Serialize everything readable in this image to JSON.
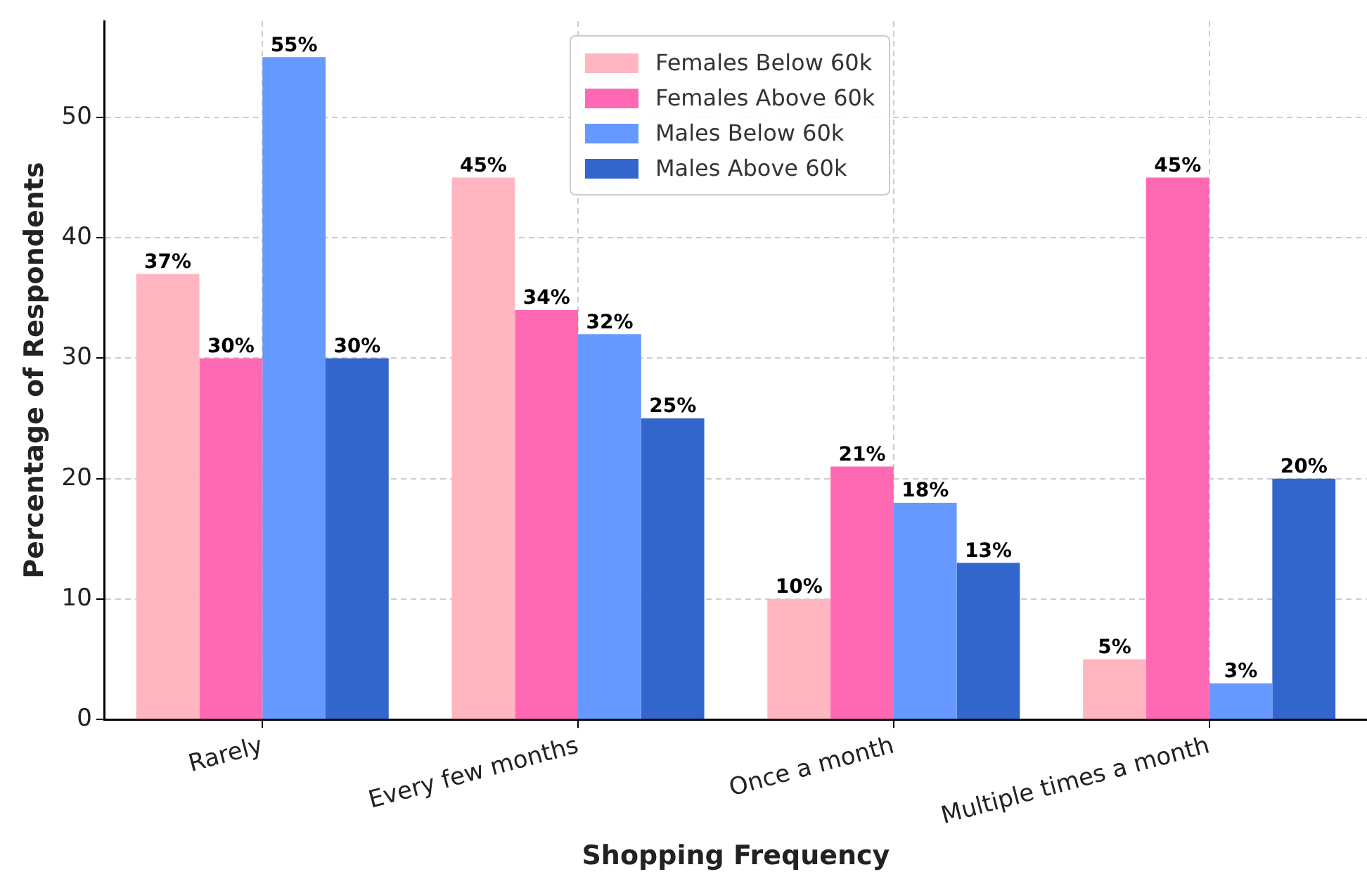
{
  "chart_data": {
    "type": "bar",
    "xlabel": "Shopping Frequency",
    "ylabel": "Percentage of Respondents",
    "categories": [
      "Rarely",
      "Every few months",
      "Once a month",
      "Multiple times a month"
    ],
    "series": [
      {
        "name": "Females Below 60k",
        "color": "#ffb6c1",
        "values": [
          37,
          45,
          10,
          5
        ],
        "value_labels": [
          "37%",
          "45%",
          "10%",
          "5%"
        ]
      },
      {
        "name": "Females Above 60k",
        "color": "#ff69b4",
        "values": [
          30,
          34,
          21,
          45
        ],
        "value_labels": [
          "30%",
          "34%",
          "21%",
          "45%"
        ]
      },
      {
        "name": "Males Below 60k",
        "color": "#6699ff",
        "values": [
          55,
          32,
          18,
          3
        ],
        "value_labels": [
          "55%",
          "32%",
          "18%",
          "3%"
        ]
      },
      {
        "name": "Males Above 60k",
        "color": "#3366cc",
        "values": [
          30,
          25,
          13,
          20
        ],
        "value_labels": [
          "30%",
          "25%",
          "13%",
          "20%"
        ]
      }
    ],
    "ylim": [
      0,
      58
    ],
    "yticks": [
      0,
      10,
      20,
      30,
      40,
      50
    ],
    "grid": true,
    "legend": "top"
  }
}
